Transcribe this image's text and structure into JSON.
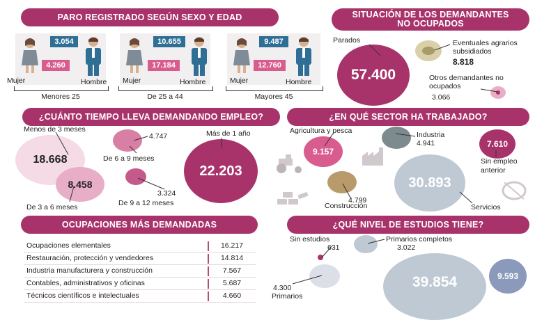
{
  "colors": {
    "header": "#a8336b",
    "box_blue": "#2f6f96",
    "box_pink": "#d95c8f",
    "bubble_magenta": "#a8336b",
    "bubble_pink": "#e9aec7",
    "bubble_gray": "#bfc9d3",
    "bubble_tan": "#b89a6b"
  },
  "paro": {
    "title": "PARO REGISTRADO SEGÚN SEXO Y EDAD",
    "mujer": "Mujer",
    "hombre": "Hombre",
    "groups": [
      {
        "label": "Menores 25",
        "hombre": "3.054",
        "mujer": "4.260"
      },
      {
        "label": "De 25 a 44",
        "hombre": "10.655",
        "mujer": "17.184"
      },
      {
        "label": "Mayores 45",
        "hombre": "9.487",
        "mujer": "12.760"
      }
    ]
  },
  "situacion": {
    "title": "SITUACIÓN DE LOS DEMANDANTES NO OCUPADOS",
    "parados_label": "Parados",
    "parados": "57.400",
    "eventuales_label": "Eventuales agrarios subsidiados",
    "eventuales": "8.818",
    "otros_label": "Otros demandantes no ocupados",
    "otros": "3.066"
  },
  "tiempo": {
    "title": "¿CUÁNTO TIEMPO LLEVA DEMANDANDO EMPLEO?",
    "menos3_label": "Menos de 3 meses",
    "menos3": "18.668",
    "de3a6_label": "De 3 a 6 meses",
    "de3a6": "8.458",
    "de6a9_label": "De 6 a 9 meses",
    "de6a9": "4.747",
    "de9a12_label": "De 9 a 12 meses",
    "de9a12": "3.324",
    "mas1_label": "Más de 1 año",
    "mas1": "22.203"
  },
  "sector": {
    "title": "¿EN QUÉ SECTOR HA TRABAJADO?",
    "agri_label": "Agricultura y pesca",
    "agri": "9.157",
    "ind_label": "Industria",
    "ind": "4.941",
    "sin_label": "Sin empleo anterior",
    "sin": "7.610",
    "cons_label": "Construcción",
    "cons": "4.799",
    "serv_label": "Servicios",
    "serv": "30.893"
  },
  "ocupaciones": {
    "title": "OCUPACIONES MÁS DEMANDADAS",
    "rows": [
      {
        "label": "Ocupaciones elementales",
        "value": "16.217"
      },
      {
        "label": "Restauración, protección y vendedores",
        "value": "14.814"
      },
      {
        "label": "Industria manufacturera y construcción",
        "value": "7.567"
      },
      {
        "label": "Contables, administrativos y oficinas",
        "value": "5.687"
      },
      {
        "label": "Técnicos científicos e intelectuales",
        "value": "4.660"
      }
    ]
  },
  "estudios": {
    "title": "¿QUÉ NIVEL DE ESTUDIOS TIENE?",
    "sin_label": "Sin estudios",
    "sin": "631",
    "prim_comp_label": "Primarios completos",
    "prim_comp": "3.022",
    "prim_label": "Primarios",
    "prim": "4.300",
    "big": "39.854",
    "right": "9.593"
  }
}
